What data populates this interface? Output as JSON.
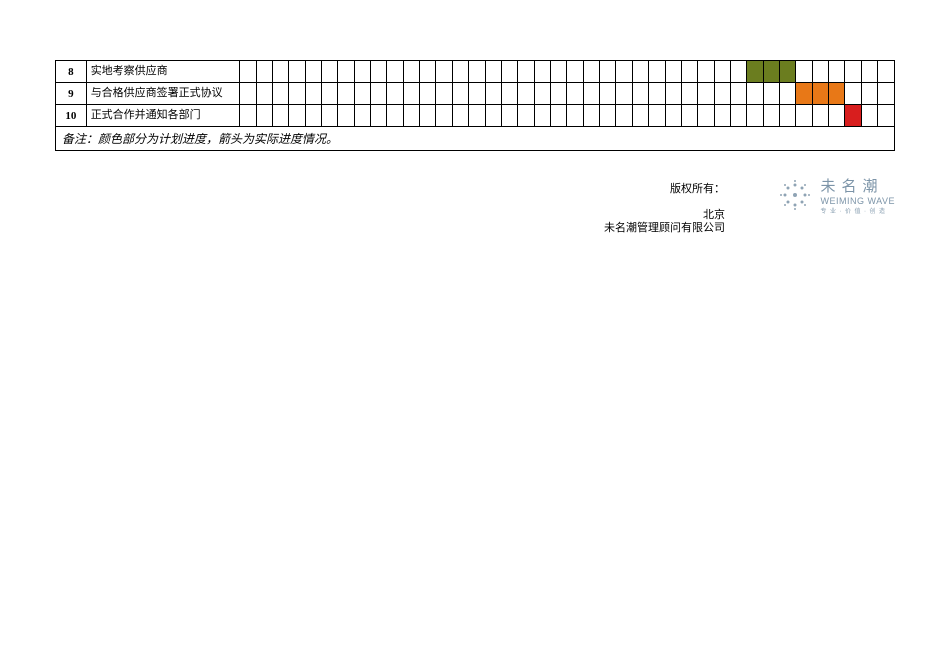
{
  "gantt": {
    "total_time_cols": 40,
    "rows": [
      {
        "id": "8",
        "task": "实地考察供应商",
        "fills": [
          {
            "start": 31,
            "end": 34,
            "color": "olive"
          }
        ]
      },
      {
        "id": "9",
        "task": "与合格供应商签署正式协议",
        "fills": [
          {
            "start": 34,
            "end": 37,
            "color": "orange"
          }
        ]
      },
      {
        "id": "10",
        "task": "正式合作并通知各部门",
        "fills": [
          {
            "start": 37,
            "end": 38,
            "color": "red"
          }
        ]
      }
    ],
    "note": "备注：颜色部分为计划进度，箭头为实际进度情况。"
  },
  "footer": {
    "copyright": "版权所有：",
    "city": "北京",
    "company": "未名潮管理顾问有限公司"
  },
  "logo": {
    "cn": "未名潮",
    "en": "WEIMING WAVE",
    "sub": "专 业 · 价 值 · 创 造",
    "swirl_color": "#7c94a8"
  },
  "colors": {
    "olive": "#6b7d1f",
    "orange": "#e87817",
    "red": "#d81e1e",
    "border": "#000000",
    "logo_text": "#7c94a8"
  }
}
